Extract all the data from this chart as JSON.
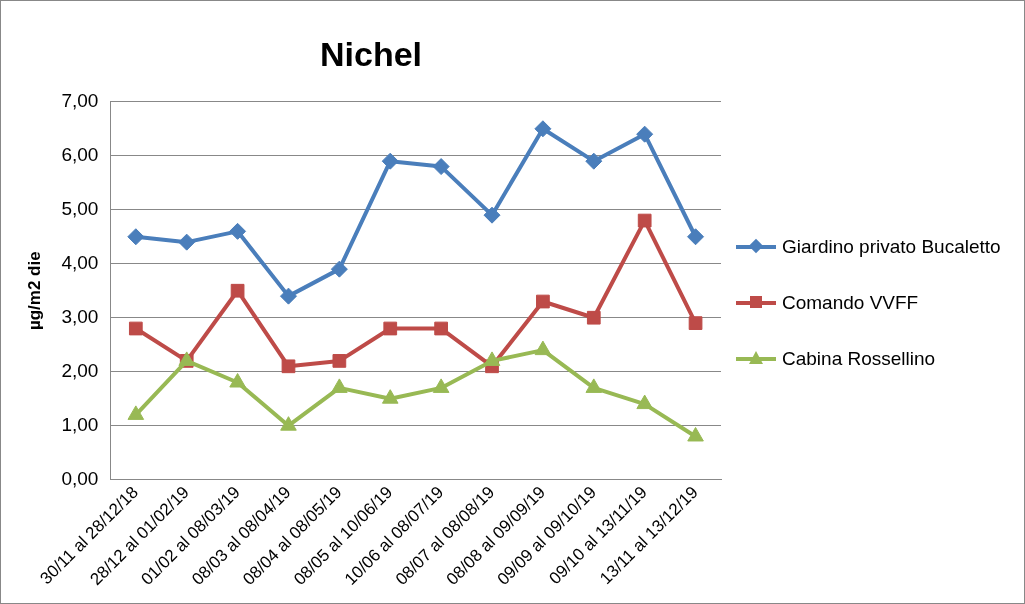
{
  "chart_data": {
    "type": "line",
    "title": "Nichel",
    "ylabel": "µg/m2 die",
    "categories": [
      "30/11 al 28/12/18",
      "28/12 al 01/02/19",
      "01/02 al 08/03/19",
      "08/03 al 08/04/19",
      "08/04 al 08/05/19",
      "08/05 al 10/06/19",
      "10/06 al 08/07/19",
      "08/07 al 08/08/19",
      "08/08 al 09/09/19",
      "09/09 al 09/10/19",
      "09/10 al 13/11/19",
      "13/11 al 13/12/19"
    ],
    "series": [
      {
        "name": "Giardino privato Bucaletto",
        "color": "#4a7ebb",
        "marker": "diamond",
        "values": [
          4.5,
          4.4,
          4.6,
          3.4,
          3.9,
          5.9,
          5.8,
          4.9,
          6.5,
          5.9,
          6.4,
          4.5
        ]
      },
      {
        "name": "Comando VVFF",
        "color": "#be4b48",
        "marker": "square",
        "values": [
          2.8,
          2.2,
          3.5,
          2.1,
          2.2,
          2.8,
          2.8,
          2.1,
          3.3,
          3.0,
          4.8,
          2.9
        ]
      },
      {
        "name": "Cabina Rossellino",
        "color": "#98b954",
        "marker": "triangle",
        "values": [
          1.2,
          2.2,
          1.8,
          1.0,
          1.7,
          1.5,
          1.7,
          2.2,
          2.4,
          1.7,
          1.4,
          0.8
        ]
      }
    ],
    "ylim": [
      0,
      7
    ],
    "yticks": [
      {
        "value": 0,
        "label": "0,00"
      },
      {
        "value": 1,
        "label": "1,00"
      },
      {
        "value": 2,
        "label": "2,00"
      },
      {
        "value": 3,
        "label": "3,00"
      },
      {
        "value": 4,
        "label": "4,00"
      },
      {
        "value": 5,
        "label": "5,00"
      },
      {
        "value": 6,
        "label": "6,00"
      },
      {
        "value": 7,
        "label": "7,00"
      }
    ],
    "grid": "y",
    "legend": "right",
    "line_style": "solid"
  }
}
